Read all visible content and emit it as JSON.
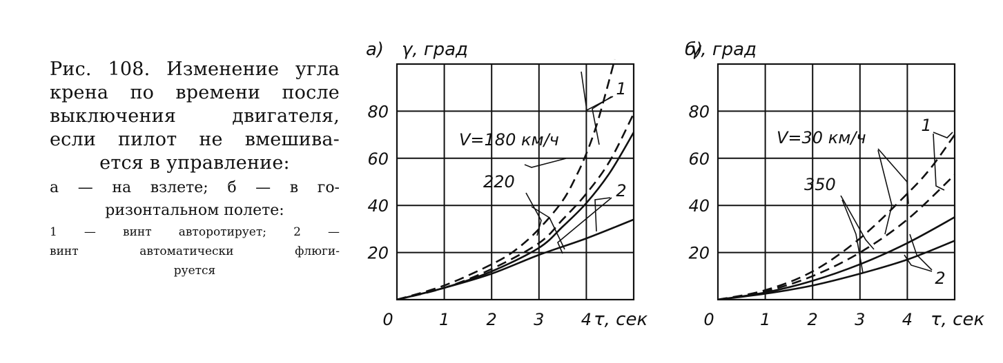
{
  "caption": {
    "line1": [
      "Рис. 108. Изменение угла",
      "крена по времени после",
      "выключения двигателя,",
      "если пилот не вмешива-",
      "ется в управление:"
    ],
    "line2": [
      "а — на взлете; б — в го-",
      "ризонтальном полете:"
    ],
    "line3": [
      "1 — винт авторотирует; 2 —",
      "винт автоматически флюги-"
    ],
    "line3_last": "руется"
  },
  "chart_data": [
    {
      "type": "line",
      "panel_label": "а)",
      "ylabel": "γ, град",
      "xlabel": "τ, сек",
      "origin_label": "0",
      "xlim": [
        0,
        5
      ],
      "ylim": [
        0,
        100
      ],
      "x_ticks": [
        "1",
        "2",
        "3",
        "4"
      ],
      "y_ticks": [
        "20",
        "40",
        "60",
        "80"
      ],
      "grid": true,
      "series": [
        {
          "style": "solid",
          "x": [
            0,
            1,
            2,
            3,
            4,
            5
          ],
          "y": [
            0,
            5,
            11,
            19,
            26,
            34
          ]
        },
        {
          "style": "solid",
          "x": [
            0,
            1,
            2,
            3,
            3.5,
            4,
            4.5,
            5
          ],
          "y": [
            0,
            5,
            12,
            22,
            31,
            41,
            54,
            71
          ]
        },
        {
          "style": "dashed",
          "x": [
            0,
            1,
            2,
            3,
            3.5,
            4,
            4.5,
            5
          ],
          "y": [
            0,
            5,
            13,
            24,
            34,
            45,
            59,
            79
          ]
        },
        {
          "style": "dashed",
          "x": [
            0,
            1,
            2,
            2.5,
            3,
            3.5,
            3.8,
            4,
            4.2,
            4.4,
            4.6
          ],
          "y": [
            0,
            6,
            15,
            21,
            30,
            42,
            53,
            62,
            73,
            87,
            102
          ]
        }
      ],
      "annotations": [
        {
          "text": "V=180 км/ч"
        },
        {
          "text": "220"
        },
        {
          "text": "1"
        },
        {
          "text": "2"
        }
      ]
    },
    {
      "type": "line",
      "panel_label": "б)",
      "ylabel": "γ, град",
      "xlabel": "τ, сек",
      "origin_label": "0",
      "xlim": [
        0,
        5
      ],
      "ylim": [
        0,
        100
      ],
      "x_ticks": [
        "1",
        "2",
        "3",
        "4"
      ],
      "y_ticks": [
        "20",
        "40",
        "60",
        "80"
      ],
      "grid": true,
      "series": [
        {
          "style": "solid",
          "x": [
            0,
            1,
            2,
            3,
            4,
            5
          ],
          "y": [
            0,
            2.5,
            6,
            11,
            17,
            25
          ]
        },
        {
          "style": "solid",
          "x": [
            0,
            1,
            2,
            3,
            4,
            5
          ],
          "y": [
            0,
            3,
            8,
            15,
            24,
            35
          ]
        },
        {
          "style": "dashed",
          "x": [
            0,
            1,
            2,
            3,
            4,
            5
          ],
          "y": [
            0,
            3.5,
            10,
            20,
            34,
            53
          ]
        },
        {
          "style": "dashed",
          "x": [
            0,
            1,
            2,
            3,
            4,
            4.5,
            5
          ],
          "y": [
            0,
            4,
            12,
            26,
            45,
            56,
            70
          ]
        }
      ],
      "annotations": [
        {
          "text": "V=30 км/ч"
        },
        {
          "text": "350"
        },
        {
          "text": "1"
        },
        {
          "text": "2"
        }
      ]
    }
  ]
}
